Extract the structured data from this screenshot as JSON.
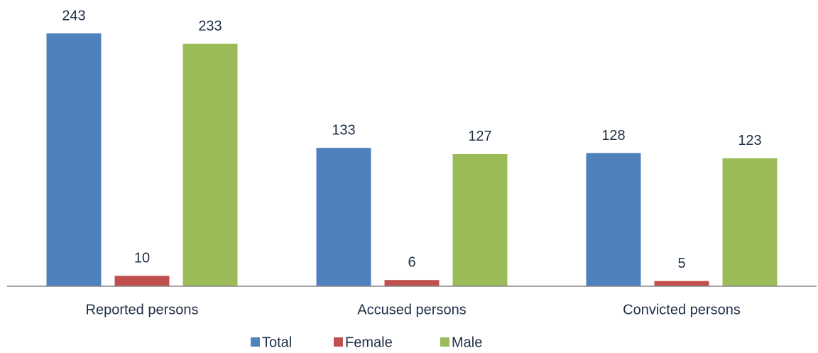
{
  "chart_data": {
    "type": "bar",
    "categories": [
      "Reported persons",
      "Accused persons",
      "Convicted persons"
    ],
    "series": [
      {
        "name": "Total",
        "color": "#4f81bd",
        "values": [
          243,
          133,
          128
        ]
      },
      {
        "name": "Female",
        "color": "#c0504d",
        "values": [
          10,
          6,
          5
        ]
      },
      {
        "name": "Male",
        "color": "#9bbb59",
        "values": [
          233,
          127,
          123
        ]
      }
    ],
    "legend": "bottom"
  }
}
